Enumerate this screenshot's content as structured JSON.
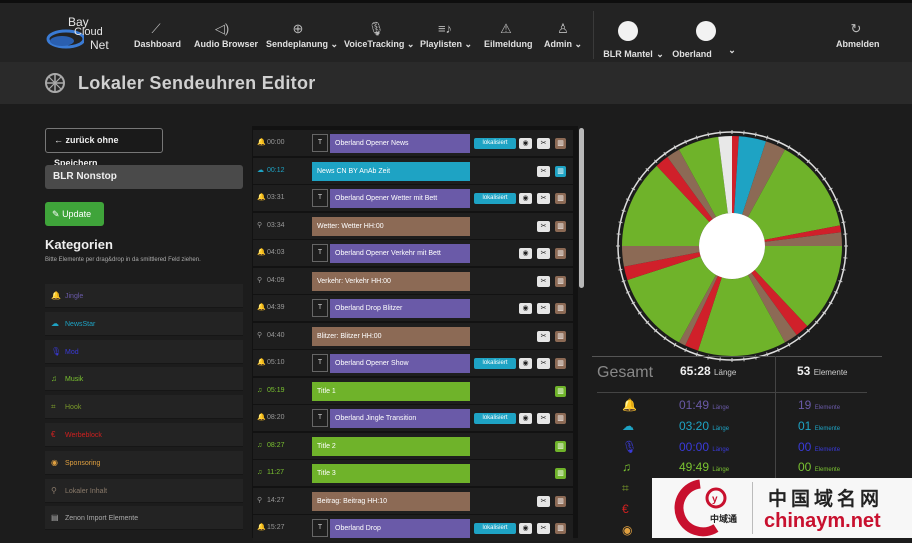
{
  "app": {
    "logo_line1": "Bay",
    "logo_line2": "Cloud",
    "logo_line3": "Net"
  },
  "nav": {
    "items": [
      {
        "label": "Dashboard",
        "icon": "chart-line-icon"
      },
      {
        "label": "Audio Browser",
        "icon": "speaker-icon"
      },
      {
        "label": "Sendeplanung",
        "icon": "globe-icon"
      },
      {
        "label": "VoiceTracking",
        "icon": "microphone-icon"
      },
      {
        "label": "Playlisten",
        "icon": "playlist-icon"
      },
      {
        "label": "Eilmeldung",
        "icon": "warning-icon"
      },
      {
        "label": "Admin",
        "icon": "user-icon"
      }
    ],
    "station1": "BLR Mantel",
    "station2": "Oberland",
    "logout": "Abmelden"
  },
  "page": {
    "title": "Lokaler Sendeuhren Editor"
  },
  "left": {
    "back_label": "zurück ohne Speichern",
    "name_value": "BLR Nonstop",
    "update_label": "Update",
    "categories_title": "Kategorien",
    "categories_hint": "Bitte Elemente per drag&drop in da smittlered Feld ziehen.",
    "categories": [
      {
        "label": "Jingle",
        "color": "#6a5aa8",
        "icon": "bell-icon"
      },
      {
        "label": "NewsStar",
        "color": "#1ea3c4",
        "icon": "cloud-icon"
      },
      {
        "label": "Mod",
        "color": "#3a3ad8",
        "icon": "microphone-icon"
      },
      {
        "label": "Musik",
        "color": "#7ac230",
        "icon": "music-icon"
      },
      {
        "label": "Hook",
        "color": "#7a9a2a",
        "icon": "crop-icon"
      },
      {
        "label": "Werbeblock",
        "color": "#d02020",
        "icon": "euro-icon"
      },
      {
        "label": "Sponsoring",
        "color": "#e0a040",
        "icon": "eye-icon"
      },
      {
        "label": "Lokaler Inhalt",
        "color": "#8a7a6a",
        "icon": "pin-icon"
      },
      {
        "label": "Zenon Import Elemente",
        "color": "#aaaaaa",
        "icon": "doc-icon"
      }
    ]
  },
  "elements": [
    {
      "time": "00:00",
      "icon": "bell-icon",
      "type": "jingle",
      "label": "Oberland Opener News",
      "localized": true
    },
    {
      "time": "00:12",
      "icon": "cloud-icon",
      "type": "news",
      "label": "News CN BY AnAb Zeit",
      "localized": false
    },
    {
      "time": "03:31",
      "icon": "bell-icon",
      "type": "jingle",
      "label": "Oberland Opener Wetter mit Bett",
      "localized": true
    },
    {
      "time": "03:34",
      "icon": "pin-icon",
      "type": "local",
      "label": "Wetter: Wetter HH:00",
      "localized": false
    },
    {
      "time": "04:03",
      "icon": "bell-icon",
      "type": "jingle",
      "label": "Oberland Opener Verkehr mit Bett",
      "localized": false
    },
    {
      "time": "04:09",
      "icon": "pin-icon",
      "type": "local",
      "label": "Verkehr: Verkehr HH:00",
      "localized": false
    },
    {
      "time": "04:39",
      "icon": "bell-icon",
      "type": "jingle",
      "label": "Oberland Drop Blitzer",
      "localized": false
    },
    {
      "time": "04:40",
      "icon": "pin-icon",
      "type": "local",
      "label": "Blitzer: Blitzer HH:00",
      "localized": false
    },
    {
      "time": "05:10",
      "icon": "bell-icon",
      "type": "jingle",
      "label": "Oberland Opener Show",
      "localized": true
    },
    {
      "time": "05:19",
      "icon": "music-icon",
      "type": "music",
      "label": "Title 1",
      "localized": false
    },
    {
      "time": "08:20",
      "icon": "bell-icon",
      "type": "jingle",
      "label": "Oberland Jingle Transition",
      "localized": true
    },
    {
      "time": "08:27",
      "icon": "music-icon",
      "type": "music",
      "label": "Title 2",
      "localized": false
    },
    {
      "time": "11:27",
      "icon": "music-icon",
      "type": "music",
      "label": "Title 3",
      "localized": false
    },
    {
      "time": "14:27",
      "icon": "pin-icon",
      "type": "local",
      "label": "Beitrag: Beitrag HH:10",
      "localized": false
    },
    {
      "time": "15:27",
      "icon": "bell-icon",
      "type": "jingle",
      "label": "Oberland Drop",
      "localized": true
    }
  ],
  "localized_label": "lokalisiert",
  "colors": {
    "jingle": "#6a5aa8",
    "news": "#1ea3c4",
    "local": "#8c6a55",
    "music": "#6fb32a",
    "red": "#d0202a"
  },
  "stats": {
    "gesamt_label": "Gesamt",
    "total_length": "65:28",
    "length_unit": "Länge",
    "total_elements": "53",
    "elements_unit": "Elemente",
    "rows": [
      {
        "icon": "bell-icon",
        "color": "#6a5aa8",
        "length": "01:49",
        "count": "19"
      },
      {
        "icon": "cloud-icon",
        "color": "#1ea3c4",
        "length": "03:20",
        "count": "01"
      },
      {
        "icon": "microphone-icon",
        "color": "#3a3ad8",
        "length": "00:00",
        "count": "00"
      },
      {
        "icon": "music-icon",
        "color": "#7ac230",
        "length": "49:49",
        "count": "00"
      },
      {
        "icon": "crop-icon",
        "color": "#7a9a2a",
        "length": "",
        "count": ""
      },
      {
        "icon": "euro-icon",
        "color": "#d02020",
        "length": "",
        "count": ""
      },
      {
        "icon": "eye-icon",
        "color": "#e0a040",
        "length": "",
        "count": ""
      }
    ]
  },
  "watermark": {
    "cn": "中国域名网",
    "domain": "chinaym.net",
    "sub": "中域通"
  }
}
